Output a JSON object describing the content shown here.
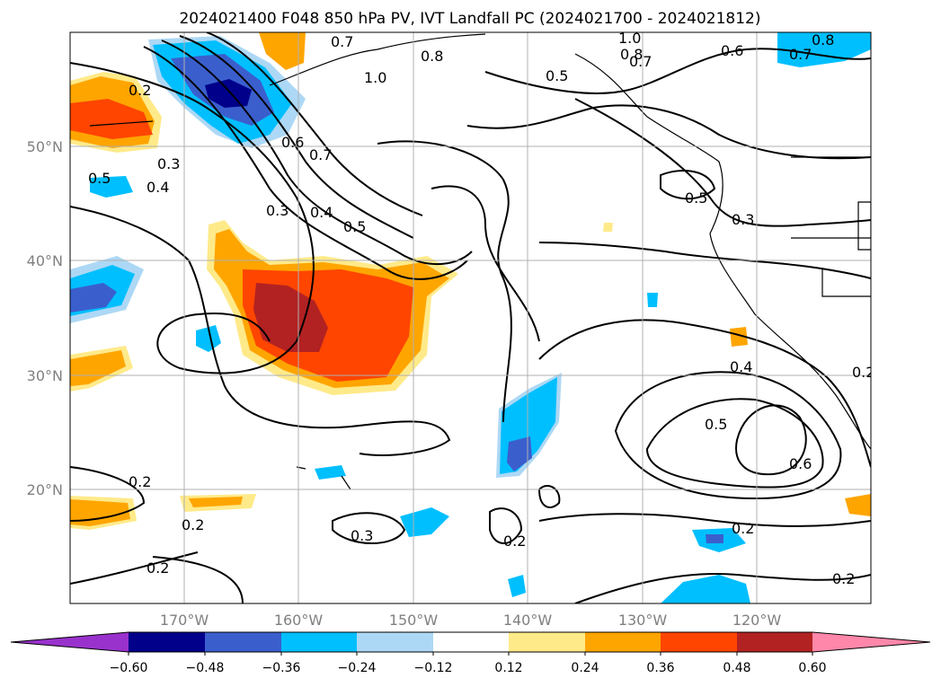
{
  "title": "2024021400 F048 850 hPa PV, IVT Landfall PC (2024021700 - 2024021812)",
  "longitude_labels": [
    "170°W",
    "160°W",
    "150°W",
    "140°W",
    "130°W",
    "120°W"
  ],
  "latitude_labels": [
    "50°N",
    "40°N",
    "30°N",
    "20°N"
  ],
  "contour_labels": [
    "0.7",
    "0.8",
    "1.0",
    "0.5",
    "1.0",
    "0.8",
    "0.7",
    "0.6",
    "0.8",
    "0.7",
    "0.2",
    "0.3",
    "0.4",
    "0.5",
    "0.6",
    "0.7",
    "0.3",
    "0.4",
    "0.5",
    "0.5",
    "0.3",
    "0.4",
    "0.2",
    "0.5",
    "0.6",
    "0.2",
    "0.2",
    "0.3",
    "0.2",
    "0.2",
    "0.2",
    "0.2"
  ],
  "colorbar": {
    "tick_labels": [
      "−0.60",
      "−0.48",
      "−0.36",
      "−0.24",
      "−0.12",
      "0.12",
      "0.24",
      "0.36",
      "0.48",
      "0.60"
    ],
    "colors": [
      "#9932cc",
      "#00008b",
      "#3a5fcd",
      "#00bfff",
      "#add8f5",
      "#ffffff",
      "#ffea8a",
      "#ffa500",
      "#ff4500",
      "#b22222",
      "#ff88aa"
    ]
  },
  "colors": {
    "pos_light": "#ffea8a",
    "pos_orange": "#ffa500",
    "pos_red": "#ff4500",
    "pos_dark": "#b22222",
    "neg_light": "#add8f5",
    "neg_blue": "#00bfff",
    "neg_mid": "#3a5fcd",
    "neg_dark": "#00008b"
  }
}
